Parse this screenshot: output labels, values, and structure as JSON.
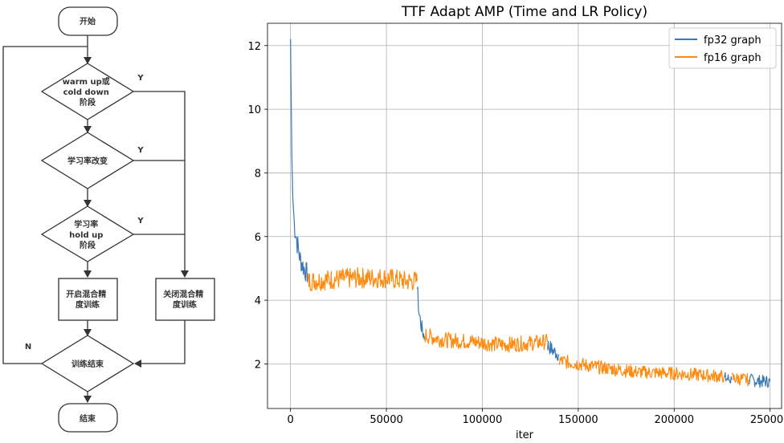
{
  "flowchart": {
    "start": "开始",
    "decision_warmup": [
      "warm up或",
      "cold down",
      "阶段"
    ],
    "decision_lr": "学习率改变",
    "decision_hold": [
      "学习率",
      "hold up",
      "阶段"
    ],
    "process_on": [
      "开启混合精",
      "度训练"
    ],
    "process_off": [
      "关闭混合精",
      "度训练"
    ],
    "decision_end": "训练结束",
    "end": "结束",
    "yes": "Y",
    "no": "N"
  },
  "chart_data": {
    "type": "line",
    "title": "TTF Adapt AMP (Time and LR Policy)",
    "xlabel": "iter",
    "ylabel": "",
    "xlim": [
      -12000,
      256000
    ],
    "ylim": [
      0.6,
      12.7
    ],
    "xticks": [
      0,
      50000,
      100000,
      150000,
      200000,
      250000
    ],
    "yticks": [
      2,
      4,
      6,
      8,
      10,
      12
    ],
    "grid": true,
    "legend_position": "top-right",
    "series": [
      {
        "name": "fp32 graph",
        "color": "#3a77b4",
        "segments": [
          [
            [
              0,
              12.2
            ],
            [
              300,
              10.5
            ],
            [
              700,
              8.6
            ],
            [
              1200,
              7.2
            ],
            [
              2000,
              6.4
            ],
            [
              3500,
              5.8
            ],
            [
              5000,
              5.3
            ],
            [
              7000,
              5.0
            ],
            [
              9000,
              4.8
            ]
          ],
          [
            [
              66000,
              4.4
            ],
            [
              67000,
              3.6
            ],
            [
              68500,
              3.1
            ],
            [
              70000,
              2.8
            ]
          ],
          [
            [
              134000,
              2.6
            ],
            [
              137000,
              2.4
            ],
            [
              140000,
              2.3
            ]
          ],
          [
            [
              226000,
              1.55
            ],
            [
              230000,
              1.5
            ]
          ],
          [
            [
              239000,
              1.5
            ],
            [
              245000,
              1.45
            ],
            [
              250000,
              1.45
            ]
          ]
        ]
      },
      {
        "name": "fp16 graph",
        "color": "#ff8a0e",
        "segments": [
          [
            [
              9000,
              4.6
            ],
            [
              20000,
              4.65
            ],
            [
              35000,
              4.7
            ],
            [
              50000,
              4.7
            ],
            [
              60000,
              4.6
            ],
            [
              66000,
              4.6
            ]
          ],
          [
            [
              70000,
              2.9
            ],
            [
              80000,
              2.75
            ],
            [
              95000,
              2.7
            ],
            [
              110000,
              2.6
            ],
            [
              125000,
              2.65
            ],
            [
              134000,
              2.7
            ]
          ],
          [
            [
              140000,
              2.1
            ],
            [
              160000,
              1.9
            ],
            [
              180000,
              1.75
            ],
            [
              200000,
              1.7
            ],
            [
              215000,
              1.65
            ],
            [
              226000,
              1.6
            ]
          ],
          [
            [
              230000,
              1.55
            ],
            [
              239000,
              1.5
            ]
          ]
        ]
      }
    ]
  }
}
